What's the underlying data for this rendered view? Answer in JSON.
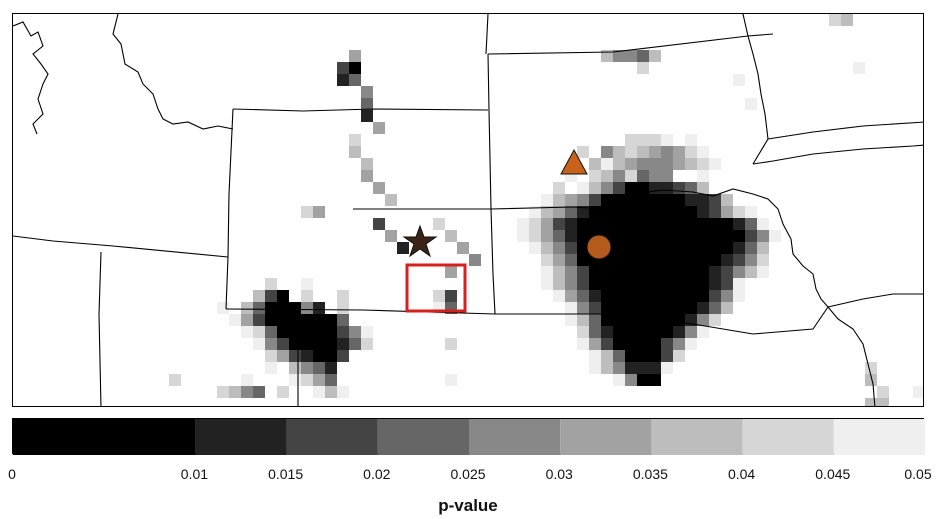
{
  "colorbar": {
    "title": "p-value",
    "tick_labels": [
      "0",
      "0.01",
      "0.015",
      "0.02",
      "0.025",
      "0.03",
      "0.035",
      "0.04",
      "0.045",
      "0.05"
    ],
    "bins": [
      {
        "from": 0,
        "to": 0.01,
        "color": "#000000"
      },
      {
        "from": 0.01,
        "to": 0.015,
        "color": "#222222"
      },
      {
        "from": 0.015,
        "to": 0.02,
        "color": "#444444"
      },
      {
        "from": 0.02,
        "to": 0.025,
        "color": "#666666"
      },
      {
        "from": 0.025,
        "to": 0.03,
        "color": "#888888"
      },
      {
        "from": 0.03,
        "to": 0.035,
        "color": "#a2a2a2"
      },
      {
        "from": 0.035,
        "to": 0.04,
        "color": "#bdbdbd"
      },
      {
        "from": 0.04,
        "to": 0.045,
        "color": "#d6d6d6"
      },
      {
        "from": 0.045,
        "to": 0.05,
        "color": "#efefef"
      }
    ]
  },
  "markers": {
    "star": {
      "shape": "star",
      "color": "#3b2417"
    },
    "triangle": {
      "shape": "triangle",
      "color": "#c8611a"
    },
    "circle": {
      "shape": "circle",
      "color": "#b45a1c"
    },
    "highlight_box": {
      "color": "#d81e1e"
    }
  },
  "map": {
    "boundary_color": "#000000",
    "background": "#ffffff"
  }
}
